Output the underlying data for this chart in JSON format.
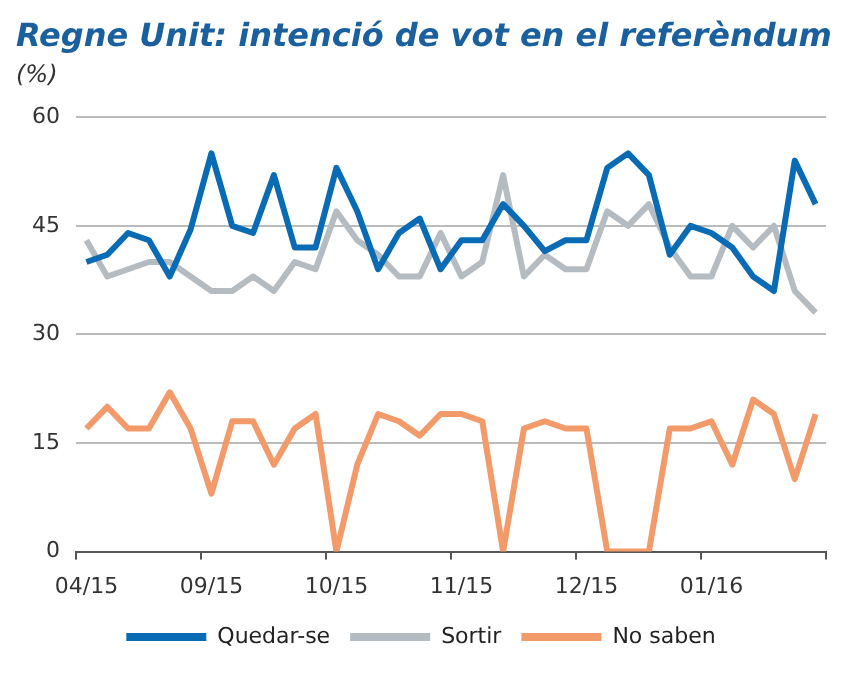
{
  "chart_data": {
    "type": "line",
    "title": "Regne Unit: intenció de vot en el referèndum",
    "ylabel": "(%)",
    "categories": [
      "04/15",
      null,
      null,
      null,
      null,
      null,
      "09/15",
      null,
      null,
      null,
      null,
      null,
      "10/15",
      null,
      null,
      null,
      null,
      null,
      "11/15",
      null,
      null,
      null,
      null,
      null,
      "12/15",
      null,
      null,
      null,
      null,
      null,
      "01/16",
      null,
      null,
      null,
      null,
      null
    ],
    "series": [
      {
        "name": "Quedar-se",
        "color": "#0a6bb5",
        "values": [
          40,
          41,
          44,
          43,
          38,
          44.5,
          55,
          45,
          44,
          52,
          42,
          42,
          53,
          47,
          39,
          44,
          46,
          39,
          43,
          43,
          48,
          45,
          41.5,
          43,
          43,
          53,
          55,
          52,
          41,
          45,
          44,
          42,
          38,
          36,
          54,
          48
        ]
      },
      {
        "name": "Sortir",
        "color": "#b4bcc2",
        "values": [
          43,
          38,
          39,
          40,
          40,
          38,
          36,
          36,
          38,
          36,
          40,
          39,
          47,
          43,
          41,
          38,
          38,
          44,
          38,
          40,
          52,
          38,
          41,
          39,
          39,
          47,
          45,
          48,
          42,
          38,
          38,
          45,
          42,
          45,
          36,
          33
        ]
      },
      {
        "name": "No saben",
        "color": "#f39a6b",
        "values": [
          17,
          20,
          17,
          17,
          22,
          17,
          8,
          18,
          18,
          12,
          17,
          19,
          0,
          12,
          19,
          18,
          16,
          19,
          19,
          18,
          0,
          17,
          18,
          17,
          17,
          0,
          0,
          0,
          17,
          17,
          18,
          12,
          21,
          19,
          10,
          19
        ]
      }
    ],
    "ylim": [
      0,
      60
    ],
    "yticks": [
      0,
      15,
      30,
      45,
      60
    ],
    "grid": "y",
    "legend": "bottom",
    "marker": "none",
    "line_style": "solid"
  }
}
